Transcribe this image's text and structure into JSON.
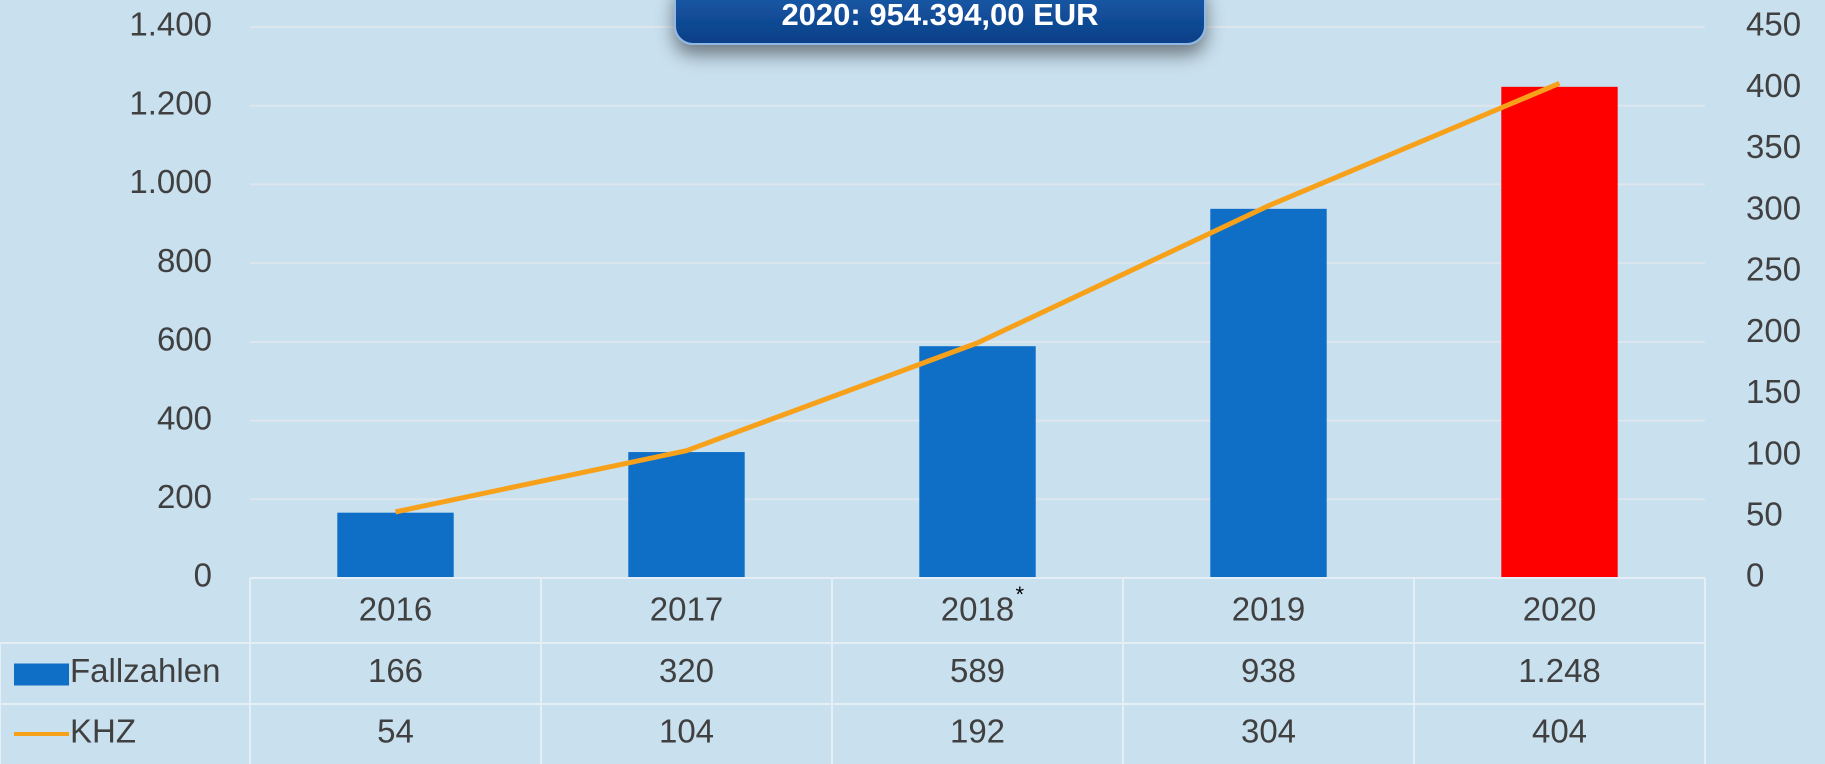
{
  "chart_data": {
    "type": "bar_line_table",
    "callout": "2020: 954.394,00 EUR",
    "categories": [
      "2016",
      "2017",
      "2018",
      "2019",
      "2020"
    ],
    "category_notes": [
      null,
      null,
      "*",
      null,
      null
    ],
    "series": [
      {
        "name": "Fallzahlen",
        "type": "bar",
        "color": "#0f6fc6",
        "colors": [
          "#0f6fc6",
          "#0f6fc6",
          "#0f6fc6",
          "#0f6fc6",
          "#ff0000"
        ],
        "values": [
          166,
          320,
          589,
          938,
          1248
        ],
        "value_labels": [
          "166",
          "320",
          "589",
          "938",
          "1.248"
        ]
      },
      {
        "name": "KHZ",
        "type": "line",
        "axis": "y2",
        "color": "#f7a11a",
        "values": [
          54,
          104,
          192,
          304,
          404
        ]
      }
    ],
    "ylim": [
      0,
      1400
    ],
    "yticks": [
      0,
      200,
      400,
      600,
      800,
      {
        "value": 1000,
        "label": "1.000"
      },
      {
        "value": 1200,
        "label": "1.200"
      },
      {
        "value": 1400,
        "label": "1.400"
      }
    ],
    "y2lim": [
      0,
      450
    ],
    "y2ticks": [
      0,
      50,
      100,
      150,
      200,
      250,
      300,
      350,
      400,
      450
    ],
    "grid": true
  }
}
